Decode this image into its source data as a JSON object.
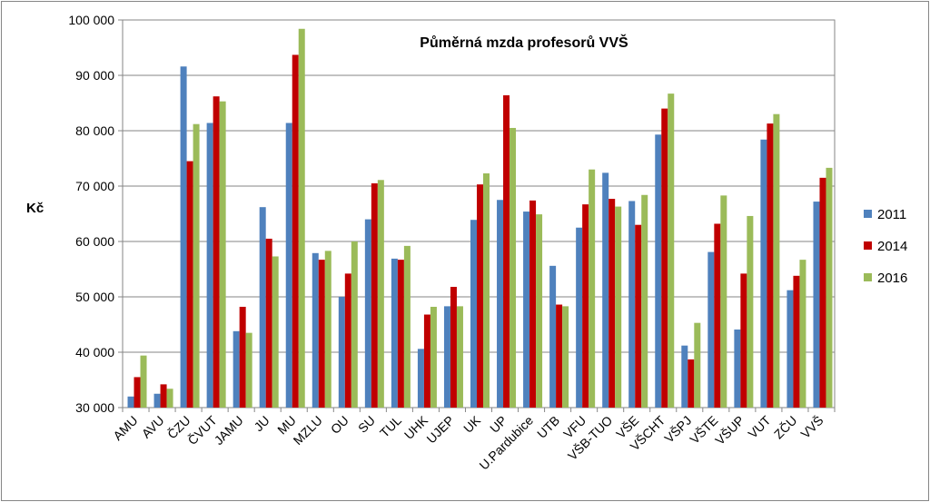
{
  "chart_data": {
    "type": "bar",
    "title": "Půměrná mzda profesorů VVŠ",
    "xlabel": "",
    "ylabel": "Kč",
    "ylim": [
      30000,
      100000
    ],
    "yticks": [
      "30 000",
      "40 000",
      "50 000",
      "60 000",
      "70 000",
      "80 000",
      "90 000",
      "100 000"
    ],
    "grid": true,
    "legend_position": "right",
    "categories": [
      "AMU",
      "AVU",
      "ČZU",
      "ČVUT",
      "JAMU",
      "JU",
      "MU",
      "MZLU",
      "OU",
      "SU",
      "TUL",
      "UHK",
      "UJEP",
      "UK",
      "UP",
      "U.Pardubice",
      "UTB",
      "VFU",
      "VŠB-TUO",
      "VŠE",
      "VŠCHT",
      "VŠPJ",
      "VŠTE",
      "VŠUP",
      "VUT",
      "ZČU",
      "VVŠ"
    ],
    "series": [
      {
        "name": "2011",
        "color": "#4f81bd",
        "values": [
          32000,
          32500,
          91600,
          81400,
          43800,
          66200,
          81400,
          57900,
          50000,
          64000,
          56900,
          40600,
          48300,
          63900,
          67500,
          65400,
          55600,
          62500,
          72400,
          67300,
          79300,
          41200,
          58100,
          44100,
          78400,
          51200,
          67200
        ]
      },
      {
        "name": "2014",
        "color": "#c00000",
        "values": [
          35500,
          34200,
          74500,
          86200,
          48200,
          60500,
          93700,
          56700,
          54200,
          70500,
          56700,
          46800,
          51800,
          70300,
          86400,
          67400,
          48600,
          66700,
          67700,
          63000,
          84000,
          38700,
          63200,
          54200,
          81300,
          53800,
          71500
        ]
      },
      {
        "name": "2016",
        "color": "#9bbb59",
        "values": [
          39400,
          33400,
          81200,
          85300,
          43500,
          57300,
          98400,
          58300,
          60000,
          71100,
          59200,
          48200,
          48300,
          72300,
          80500,
          64900,
          48300,
          73000,
          66300,
          68400,
          86700,
          45300,
          68300,
          64600,
          83000,
          56700,
          73300
        ]
      }
    ]
  }
}
